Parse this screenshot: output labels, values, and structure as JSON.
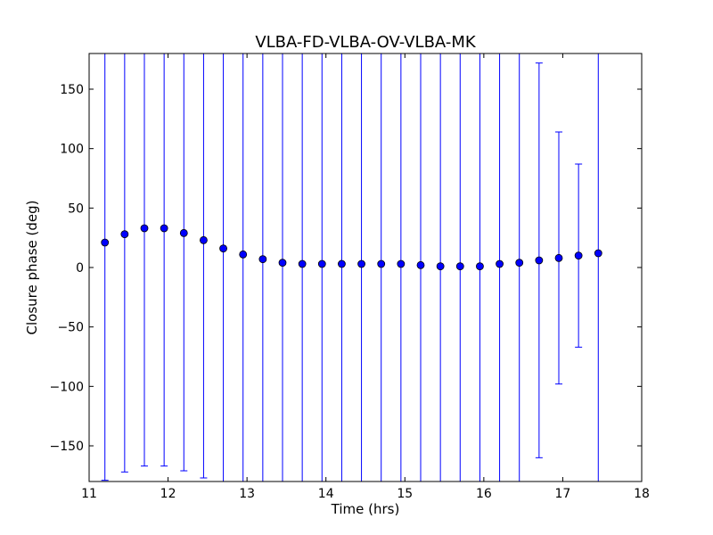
{
  "chart_data": {
    "type": "scatter",
    "title": "VLBA-FD-VLBA-OV-VLBA-MK",
    "xlabel": "Time (hrs)",
    "ylabel": "Closure phase (deg)",
    "xlim": [
      11,
      18
    ],
    "ylim": [
      -180,
      180
    ],
    "xticks": [
      11,
      12,
      13,
      14,
      15,
      16,
      17,
      18
    ],
    "xtick_labels": [
      "11",
      "12",
      "13",
      "14",
      "15",
      "16",
      "17",
      "18"
    ],
    "yticks": [
      -150,
      -100,
      -50,
      0,
      50,
      100,
      150
    ],
    "ytick_labels": [
      "−150",
      "−100",
      "−50",
      "0",
      "50",
      "100",
      "150"
    ],
    "grid": false,
    "legend": "none",
    "marker_color": "#0000ff",
    "errorbar_color": "#0000ff",
    "series": [
      {
        "x": [
          11.2,
          11.45,
          11.7,
          11.95,
          12.2,
          12.45,
          12.7,
          12.95,
          13.2,
          13.45,
          13.7,
          13.95,
          14.2,
          14.45,
          14.7,
          14.95,
          15.2,
          15.45,
          15.7,
          15.95,
          16.2,
          16.45,
          16.7,
          16.95,
          17.2,
          17.45
        ],
        "y": [
          21,
          28,
          33,
          33,
          29,
          23,
          16,
          11,
          7,
          4,
          3,
          3,
          3,
          3,
          3,
          3,
          2,
          1,
          1,
          1,
          3,
          4,
          6,
          8,
          10,
          12
        ],
        "yerr": [
          200,
          200,
          200,
          200,
          200,
          200,
          200,
          200,
          200,
          200,
          200,
          200,
          200,
          200,
          200,
          200,
          200,
          200,
          200,
          200,
          200,
          200,
          166,
          106,
          77,
          200
        ]
      }
    ]
  }
}
